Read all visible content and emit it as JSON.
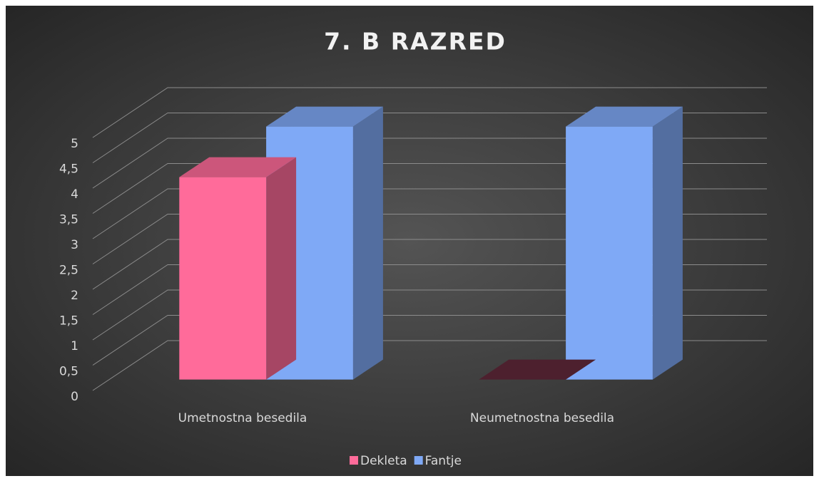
{
  "chart_data": {
    "type": "bar3d",
    "title": "7. B RAZRED",
    "categories": [
      "Umetnostna besedila",
      "Neumetnostna besedila"
    ],
    "series": [
      {
        "name": "Dekleta",
        "color": "#ff6b9a",
        "values": [
          4,
          0
        ]
      },
      {
        "name": "Fantje",
        "color": "#7fa9f6",
        "values": [
          5,
          5
        ]
      }
    ],
    "ylim": [
      0,
      5
    ],
    "yticks": [
      0,
      {
        "value": 0.5,
        "label": "0,5"
      },
      1,
      {
        "value": 1.5,
        "label": "1,5"
      },
      2,
      {
        "value": 2.5,
        "label": "2,5"
      },
      3,
      {
        "value": 3.5,
        "label": "3,5"
      },
      4,
      {
        "value": 4.5,
        "label": "4,5"
      },
      5
    ],
    "grid": true,
    "legend": "bottom"
  }
}
